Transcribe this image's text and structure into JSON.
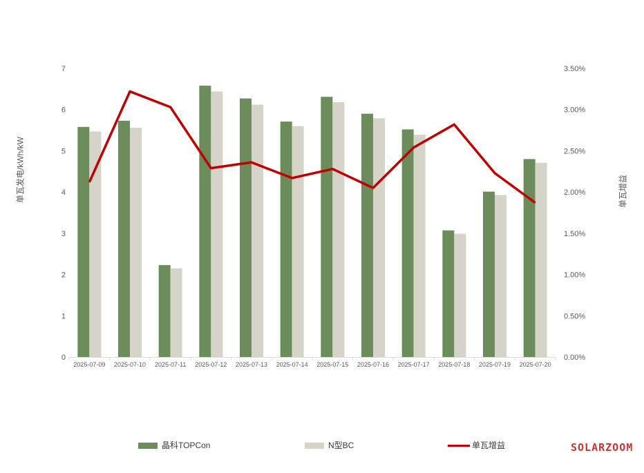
{
  "watermark": {
    "text": "SOLARZOOM",
    "color": "#CC3333"
  },
  "chart_data": {
    "type": "bar+line combo",
    "title": "",
    "categories": [
      "2025-07-09",
      "2025-07-10",
      "2025-07-11",
      "2025-07-12",
      "2025-07-13",
      "2025-07-14",
      "2025-07-15",
      "2025-07-16",
      "2025-07-17",
      "2025-07-18",
      "2025-07-19",
      "2025-07-20"
    ],
    "series": [
      {
        "name": "晶科TOPCon",
        "type": "bar",
        "axis": "left",
        "color": "#6D8C5C",
        "values": [
          5.58,
          5.73,
          2.23,
          6.58,
          6.27,
          5.71,
          6.31,
          5.9,
          5.52,
          3.07,
          4.01,
          4.8
        ]
      },
      {
        "name": "N型BC",
        "type": "bar",
        "axis": "left",
        "color": "#D6D4C8",
        "values": [
          5.47,
          5.56,
          2.15,
          6.44,
          6.12,
          5.6,
          6.18,
          5.79,
          5.39,
          2.99,
          3.93,
          4.71
        ]
      },
      {
        "name": "单瓦增益",
        "type": "line",
        "axis": "right",
        "color": "#C00000",
        "values_pct": [
          2.12,
          3.22,
          3.03,
          2.29,
          2.36,
          2.17,
          2.28,
          2.05,
          2.54,
          2.82,
          2.23,
          1.87
        ]
      }
    ],
    "left_axis": {
      "title": "单瓦发电/kWh/kW",
      "min": 0,
      "max": 7,
      "ticks": [
        0,
        1,
        2,
        3,
        4,
        5,
        6,
        7
      ]
    },
    "right_axis": {
      "title": "单瓦增益",
      "min_pct": 0,
      "max_pct": 3.5,
      "tick_labels": [
        "0.00%",
        "0.50%",
        "1.00%",
        "1.50%",
        "2.00%",
        "2.50%",
        "3.00%",
        "3.50%"
      ]
    },
    "legend": {
      "position": "bottom",
      "entries": [
        "晶科TOPCon",
        "N型BC",
        "单瓦增益"
      ]
    },
    "grid": false,
    "text_color": "#595959",
    "axis_line_color": "#D9D9D9"
  }
}
